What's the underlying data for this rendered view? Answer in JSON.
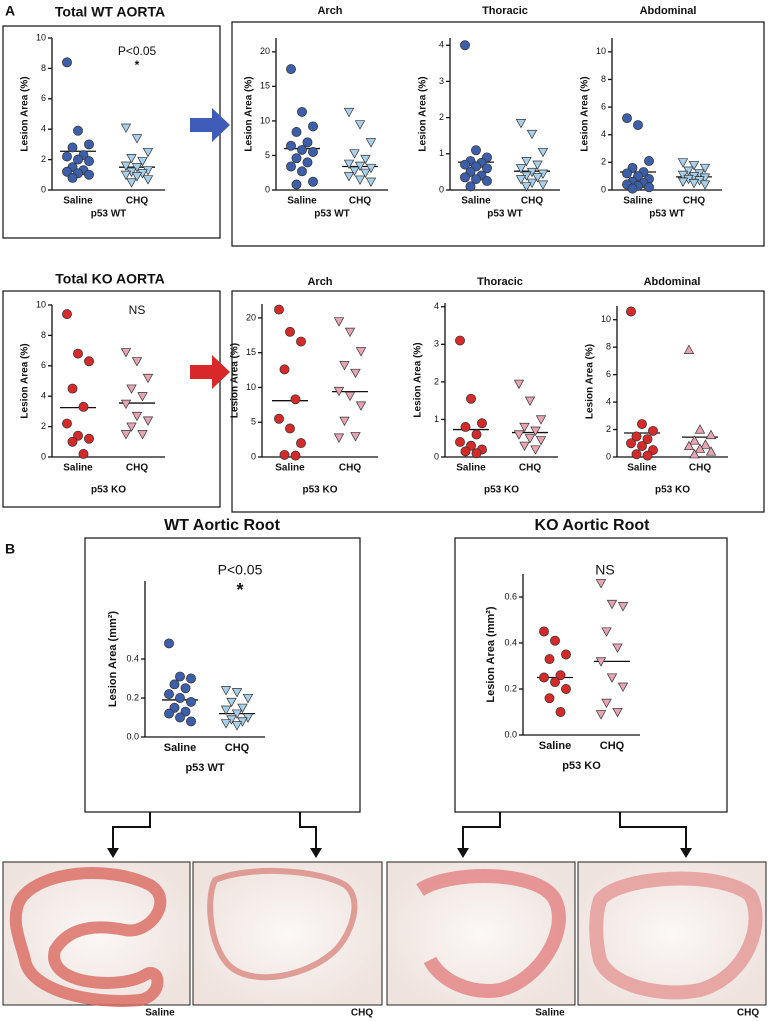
{
  "panels": [
    "A",
    "B"
  ],
  "chart_data": [
    {
      "type": "strip",
      "title": "Total WT AORTA",
      "ylabel": "Lesion Area (%)",
      "xlabel": "p53 WT",
      "annotation": "P<0.05",
      "significance": "*",
      "categories": [
        "Saline",
        "CHQ"
      ],
      "ylim": [
        0,
        10
      ],
      "yticks": [
        0,
        2,
        4,
        6,
        8,
        10
      ],
      "groups": [
        {
          "color": "#3d5ea8",
          "marker": "circle",
          "values": [
            8.4,
            3.9,
            3.0,
            2.8,
            2.3,
            2.2,
            2.0,
            1.9,
            1.5,
            1.3,
            1.2,
            1.1,
            1.0,
            0.8
          ],
          "mean": 2.55
        },
        {
          "color": "#a8d0ea",
          "marker": "triangle-down",
          "values": [
            4.1,
            3.4,
            2.5,
            2.1,
            1.9,
            1.6,
            1.5,
            1.3,
            1.2,
            1.1,
            1.0,
            0.9,
            0.7,
            0.5
          ],
          "mean": 1.5
        }
      ]
    },
    {
      "type": "strip",
      "title": "Arch",
      "ylabel": "Lesion Area (%)",
      "xlabel": "p53 WT",
      "categories": [
        "Saline",
        "CHQ"
      ],
      "ylim": [
        0,
        22
      ],
      "yticks": [
        0,
        5,
        10,
        15,
        20
      ],
      "groups": [
        {
          "color": "#3d5ea8",
          "marker": "circle",
          "values": [
            17.5,
            11.3,
            9.2,
            8.4,
            6.9,
            6.4,
            5.8,
            5.5,
            4.6,
            4.0,
            3.4,
            2.7,
            1.2,
            0.8
          ],
          "mean": 6.0
        },
        {
          "color": "#a8d0ea",
          "marker": "triangle-down",
          "values": [
            11.3,
            9.5,
            6.9,
            5.3,
            4.5,
            3.8,
            3.5,
            3.2,
            2.8,
            2.5,
            2.0,
            1.5,
            1.2
          ],
          "mean": 3.4
        }
      ]
    },
    {
      "type": "strip",
      "title": "Thoracic",
      "ylabel": "Lesion Area (%)",
      "xlabel": "p53 WT",
      "categories": [
        "Saline",
        "CHQ"
      ],
      "ylim": [
        0,
        4.2
      ],
      "yticks": [
        0,
        1,
        2,
        3,
        4
      ],
      "groups": [
        {
          "color": "#3d5ea8",
          "marker": "circle",
          "values": [
            4.0,
            1.1,
            0.9,
            0.8,
            0.75,
            0.7,
            0.65,
            0.6,
            0.5,
            0.4,
            0.35,
            0.3,
            0.25,
            0.1
          ],
          "mean": 0.77
        },
        {
          "color": "#a8d0ea",
          "marker": "triangle-down",
          "values": [
            1.85,
            1.55,
            1.05,
            0.8,
            0.7,
            0.6,
            0.5,
            0.45,
            0.4,
            0.35,
            0.3,
            0.2,
            0.15,
            0.1
          ],
          "mean": 0.52
        }
      ]
    },
    {
      "type": "strip",
      "title": "Abdominal",
      "ylabel": "Lesion Area (%)",
      "xlabel": "p53 WT",
      "categories": [
        "Saline",
        "CHQ"
      ],
      "ylim": [
        0,
        11
      ],
      "yticks": [
        0,
        2,
        4,
        6,
        8,
        10
      ],
      "groups": [
        {
          "color": "#3d5ea8",
          "marker": "circle",
          "values": [
            5.2,
            4.7,
            2.1,
            1.6,
            1.3,
            1.2,
            1.0,
            0.8,
            0.6,
            0.5,
            0.4,
            0.3,
            0.2,
            0.1
          ],
          "mean": 1.3
        },
        {
          "color": "#a8d0ea",
          "marker": "triangle-down",
          "values": [
            2.0,
            1.8,
            1.6,
            1.4,
            1.2,
            1.1,
            1.0,
            0.9,
            0.8,
            0.7,
            0.6,
            0.5,
            0.4
          ],
          "mean": 0.95
        }
      ]
    },
    {
      "type": "strip",
      "title": "Total KO AORTA",
      "ylabel": "Lesion Area (%)",
      "xlabel": "p53 KO",
      "annotation": "NS",
      "categories": [
        "Saline",
        "CHQ"
      ],
      "ylim": [
        0,
        10
      ],
      "yticks": [
        0,
        2,
        4,
        6,
        8,
        10
      ],
      "groups": [
        {
          "color": "#d42a2a",
          "marker": "circle",
          "values": [
            9.4,
            6.8,
            6.3,
            4.5,
            3.3,
            2.2,
            1.4,
            1.2,
            1.0,
            0.2
          ],
          "mean": 3.25
        },
        {
          "color": "#e8a4b3",
          "marker": "triangle-down",
          "values": [
            6.9,
            6.3,
            5.2,
            4.5,
            4.0,
            3.5,
            2.7,
            2.4,
            2.0,
            1.5,
            1.5
          ],
          "mean": 3.55
        }
      ]
    },
    {
      "type": "strip",
      "title": "Arch",
      "ylabel": "Lesion Area (%)",
      "xlabel": "p53 KO",
      "categories": [
        "Saline",
        "CHQ"
      ],
      "ylim": [
        0,
        22
      ],
      "yticks": [
        0,
        5,
        10,
        15,
        20
      ],
      "groups": [
        {
          "color": "#d42a2a",
          "marker": "circle",
          "values": [
            21.2,
            18.0,
            16.6,
            12.6,
            8.3,
            5.5,
            4.1,
            2.0,
            0.3,
            0.2
          ],
          "mean": 8.1
        },
        {
          "color": "#e8a4b3",
          "marker": "triangle-down",
          "values": [
            19.5,
            18.0,
            15.2,
            13.2,
            12.1,
            9.5,
            8.8,
            7.4,
            5.2,
            3.0,
            2.8
          ],
          "mean": 9.4
        }
      ]
    },
    {
      "type": "strip",
      "title": "Thoracic",
      "ylabel": "Lesion Area (%)",
      "xlabel": "p53 KO",
      "categories": [
        "Saline",
        "CHQ"
      ],
      "ylim": [
        0,
        4.1
      ],
      "yticks": [
        0,
        1,
        2,
        3,
        4
      ],
      "groups": [
        {
          "color": "#d42a2a",
          "marker": "circle",
          "values": [
            3.1,
            1.55,
            0.9,
            0.8,
            0.6,
            0.4,
            0.3,
            0.2,
            0.15,
            0.1
          ],
          "mean": 0.73
        },
        {
          "color": "#e8a4b3",
          "marker": "triangle-down",
          "values": [
            1.95,
            1.5,
            1.0,
            0.8,
            0.7,
            0.6,
            0.5,
            0.45,
            0.3,
            0.2
          ],
          "mean": 0.65
        }
      ]
    },
    {
      "type": "strip",
      "title": "Abdominal",
      "ylabel": "Lesion Area (%)",
      "xlabel": "p53 KO",
      "categories": [
        "Saline",
        "CHQ"
      ],
      "ylim": [
        0,
        11
      ],
      "yticks": [
        0,
        2,
        4,
        6,
        8,
        10
      ],
      "groups": [
        {
          "color": "#d42a2a",
          "marker": "circle",
          "values": [
            10.6,
            2.4,
            1.9,
            1.5,
            1.3,
            1.0,
            0.8,
            0.5,
            0.2,
            0.1
          ],
          "mean": 1.75
        },
        {
          "color": "#e8a4b3",
          "marker": "triangle-up",
          "values": [
            7.8,
            2.0,
            1.6,
            1.2,
            0.9,
            0.8,
            0.6,
            0.4,
            0.2
          ],
          "mean": 1.45
        }
      ]
    },
    {
      "type": "strip",
      "title": "WT Aortic Root",
      "ylabel": "Lesion Area (mm²)",
      "xlabel": "p53 WT",
      "annotation": "P<0.05",
      "significance": "*",
      "categories": [
        "Saline",
        "CHQ"
      ],
      "ylim": [
        0,
        0.8
      ],
      "yticks": [
        {
          "value": 0,
          "label": "0.0"
        },
        0.2,
        0.4
      ],
      "groups": [
        {
          "color": "#3d5ea8",
          "marker": "circle",
          "values": [
            0.48,
            0.31,
            0.3,
            0.27,
            0.25,
            0.22,
            0.2,
            0.18,
            0.15,
            0.13,
            0.12,
            0.1,
            0.08
          ],
          "mean": 0.19
        },
        {
          "color": "#a8d0ea",
          "marker": "triangle-down",
          "values": [
            0.24,
            0.23,
            0.2,
            0.18,
            0.15,
            0.14,
            0.12,
            0.1,
            0.09,
            0.08,
            0.07,
            0.06
          ],
          "mean": 0.12
        }
      ]
    },
    {
      "type": "strip",
      "title": "KO Aortic Root",
      "ylabel": "Lesion Area (mm²)",
      "xlabel": "p53 KO",
      "annotation": "NS",
      "categories": [
        "Saline",
        "CHQ"
      ],
      "ylim": [
        0,
        0.7
      ],
      "yticks": [
        {
          "value": 0,
          "label": "0.0"
        },
        0.2,
        0.4,
        0.6
      ],
      "groups": [
        {
          "color": "#d42a2a",
          "marker": "circle",
          "values": [
            0.45,
            0.41,
            0.35,
            0.33,
            0.26,
            0.25,
            0.23,
            0.2,
            0.16,
            0.1
          ],
          "mean": 0.25
        },
        {
          "color": "#e8a4b3",
          "marker": "triangle-down",
          "values": [
            0.66,
            0.57,
            0.56,
            0.45,
            0.38,
            0.32,
            0.25,
            0.21,
            0.14,
            0.1,
            0.09
          ],
          "mean": 0.32
        }
      ]
    }
  ],
  "micrographs": [
    {
      "caption": "Saline"
    },
    {
      "caption": "CHQ"
    },
    {
      "caption": "Saline"
    },
    {
      "caption": "CHQ"
    }
  ]
}
